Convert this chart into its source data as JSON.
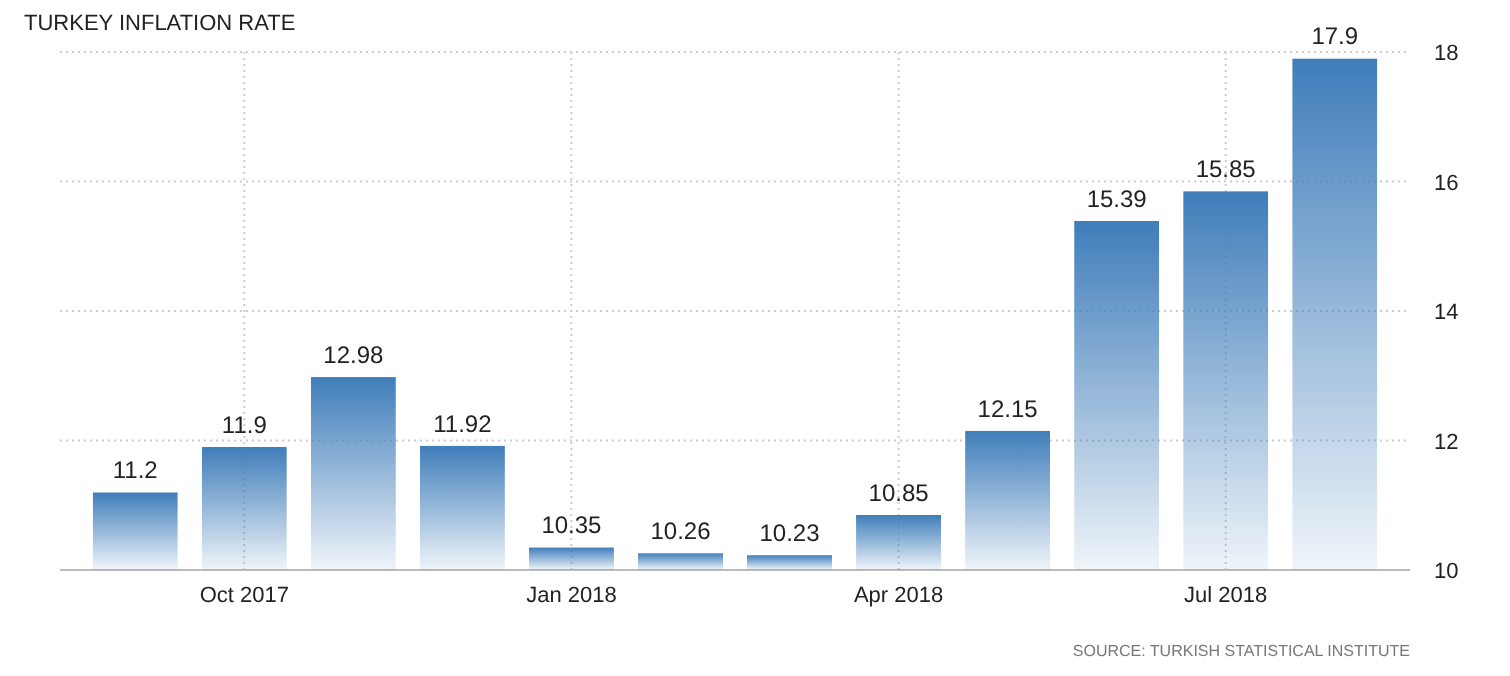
{
  "chart_data": {
    "type": "bar",
    "title": "TURKEY INFLATION RATE",
    "categories": [
      null,
      "Oct 2017",
      null,
      null,
      "Jan 2018",
      null,
      null,
      "Apr 2018",
      null,
      null,
      "Jul 2018",
      null
    ],
    "values": [
      11.2,
      11.9,
      12.98,
      11.92,
      10.35,
      10.26,
      10.23,
      10.85,
      12.15,
      15.39,
      15.85,
      17.9
    ],
    "color": "#3f7dba",
    "ylim": [
      10,
      18
    ],
    "yticks": [
      10,
      12,
      14,
      16,
      18
    ],
    "grid": true,
    "data_labels": true,
    "annotations": [
      "SOURCE: TURKISH STATISTICAL INSTITUTE"
    ]
  }
}
